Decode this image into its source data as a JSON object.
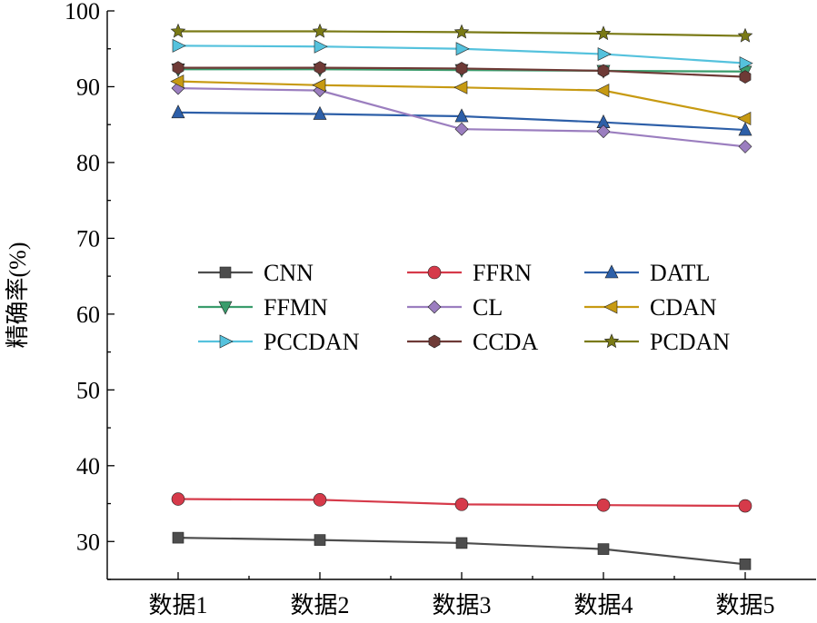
{
  "chart_data": {
    "type": "line",
    "title": "",
    "xlabel": "",
    "ylabel": "精确率(%)",
    "ylim": [
      25,
      100
    ],
    "yticks": [
      30,
      40,
      50,
      60,
      70,
      80,
      90,
      100
    ],
    "grid": false,
    "legend_position": "center",
    "categories": [
      "数据1",
      "数据2",
      "数据3",
      "数据4",
      "数据5"
    ],
    "series": [
      {
        "name": "CNN",
        "color": "#4d4d4d",
        "marker": "square",
        "values": [
          30.5,
          30.2,
          29.8,
          29.0,
          27.0
        ]
      },
      {
        "name": "FFRN",
        "color": "#d63a4a",
        "marker": "circle",
        "values": [
          35.6,
          35.5,
          34.9,
          34.8,
          34.7
        ]
      },
      {
        "name": "DATL",
        "color": "#2d5fa8",
        "marker": "triangle-up",
        "values": [
          86.6,
          86.4,
          86.1,
          85.3,
          84.3
        ]
      },
      {
        "name": "FFMN",
        "color": "#3a9c6c",
        "marker": "triangle-down",
        "values": [
          92.3,
          92.3,
          92.2,
          92.1,
          92.0
        ]
      },
      {
        "name": "CL",
        "color": "#9b7ebf",
        "marker": "diamond",
        "values": [
          89.8,
          89.5,
          84.4,
          84.1,
          82.1
        ]
      },
      {
        "name": "CDAN",
        "color": "#c79a12",
        "marker": "triangle-left",
        "values": [
          90.7,
          90.2,
          89.9,
          89.5,
          85.8
        ]
      },
      {
        "name": "PCCDAN",
        "color": "#55c2dd",
        "marker": "triangle-right",
        "values": [
          95.4,
          95.3,
          95.0,
          94.3,
          93.1
        ]
      },
      {
        "name": "CCDA",
        "color": "#6e3a36",
        "marker": "hexagon",
        "values": [
          92.5,
          92.5,
          92.4,
          92.1,
          91.3
        ]
      },
      {
        "name": "PCDAN",
        "color": "#7a7a16",
        "marker": "star",
        "values": [
          97.3,
          97.3,
          97.2,
          97.0,
          96.7
        ]
      }
    ]
  }
}
